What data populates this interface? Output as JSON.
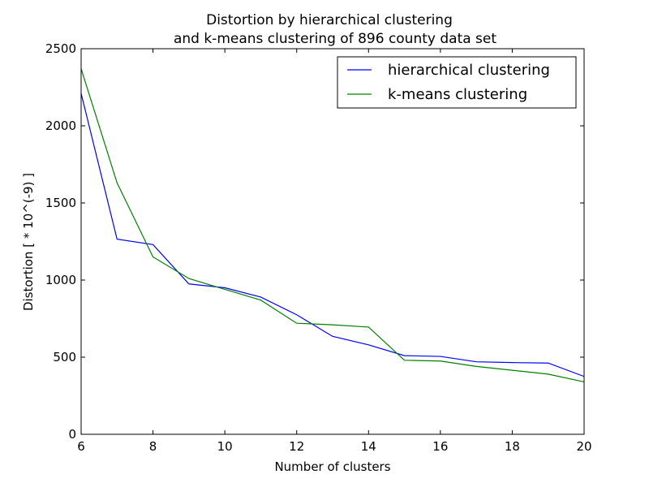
{
  "chart_data": {
    "type": "line",
    "title": [
      "Distortion by hierarchical clustering",
      "and k-means clustering of 896 county data set"
    ],
    "xlabel": "Number of clusters",
    "ylabel": "Distortion [ * 10^(-9) ]",
    "xlim": [
      6,
      20
    ],
    "ylim": [
      0,
      2500
    ],
    "xticks": [
      "6",
      "8",
      "10",
      "12",
      "14",
      "16",
      "18",
      "20"
    ],
    "yticks": [
      "0",
      "500",
      "1000",
      "1500",
      "2000",
      "2500"
    ],
    "x": [
      6,
      7,
      8,
      9,
      10,
      11,
      12,
      13,
      14,
      15,
      16,
      17,
      18,
      19,
      20
    ],
    "legend_position": "top-right",
    "grid": false,
    "series": [
      {
        "name": "hierarchical clustering",
        "color": "#0000ff",
        "values": [
          2210,
          1265,
          1230,
          975,
          950,
          890,
          775,
          635,
          580,
          510,
          505,
          470,
          465,
          462,
          375
        ]
      },
      {
        "name": "k-means clustering",
        "color": "#008000",
        "values": [
          2370,
          1630,
          1150,
          1010,
          940,
          870,
          720,
          710,
          695,
          480,
          475,
          440,
          415,
          390,
          340
        ]
      }
    ]
  }
}
